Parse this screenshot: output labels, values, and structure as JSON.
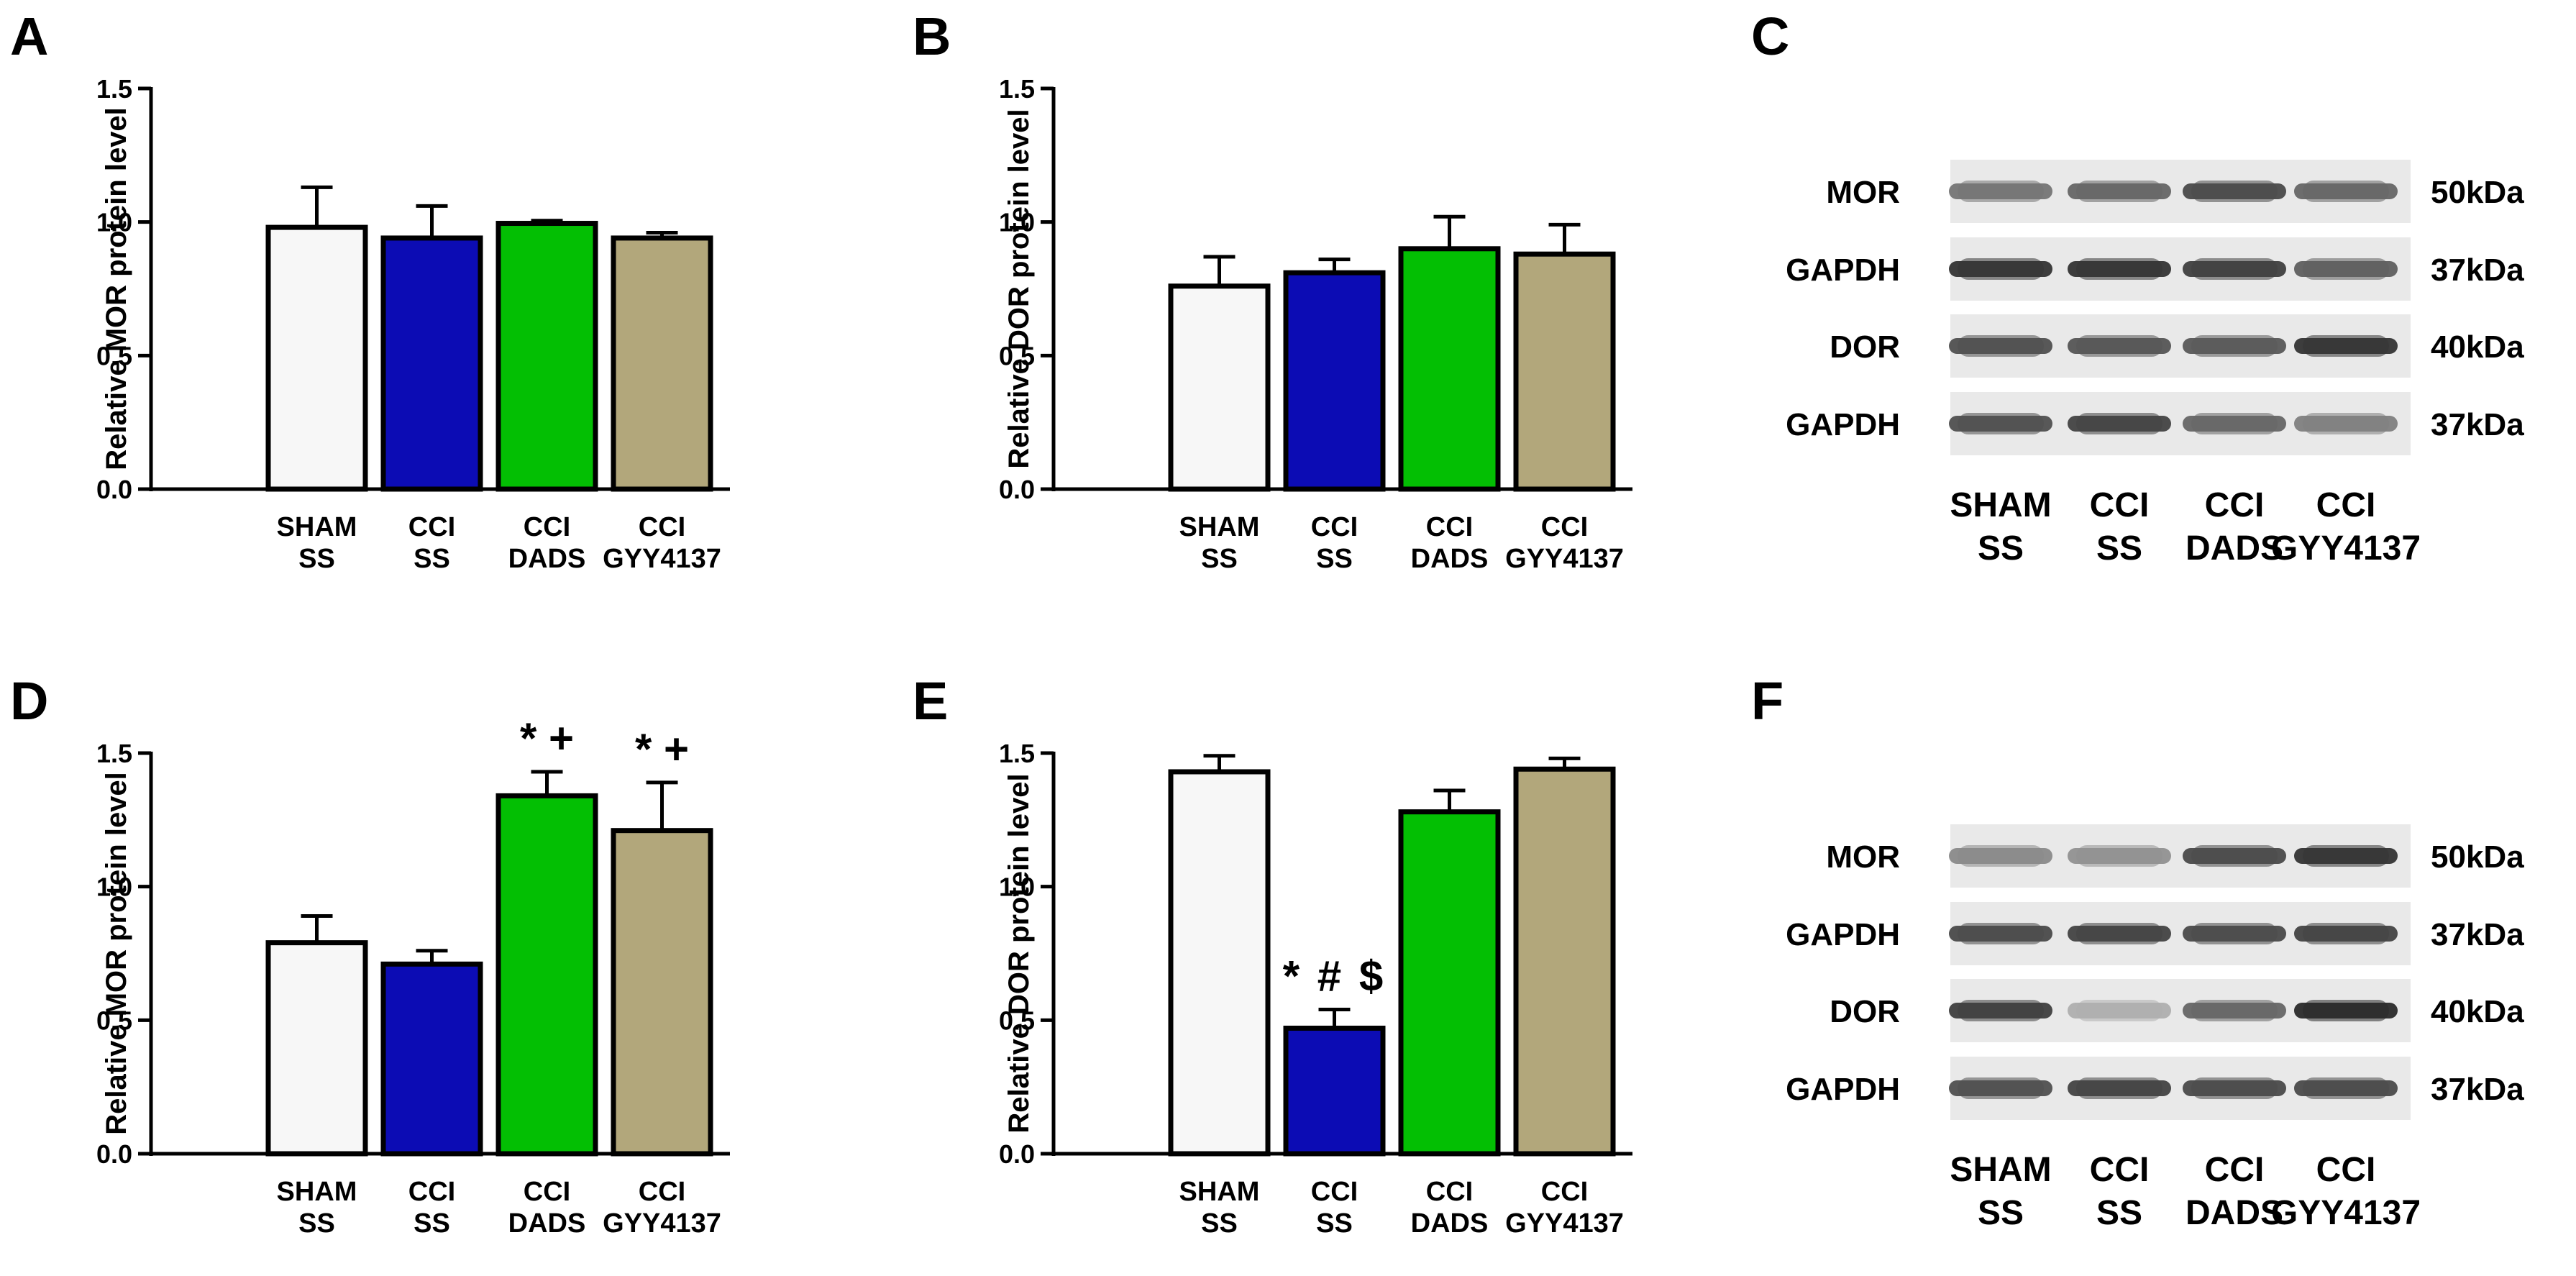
{
  "colors": {
    "sham_ss": "#f7f7f7",
    "cci_ss": "#0c0cb4",
    "cci_dads": "#03bf03",
    "cci_gyy4137": "#b2a77b",
    "axis": "#000000"
  },
  "blots": [
    {
      "panel": "C",
      "rows": [
        {
          "protein": "MOR",
          "kda": "50kDa",
          "intensity": [
            0.55,
            0.62,
            0.75,
            0.62
          ]
        },
        {
          "protein": "GAPDH",
          "kda": "37kDa",
          "intensity": [
            0.85,
            0.85,
            0.8,
            0.65
          ]
        },
        {
          "protein": "DOR",
          "kda": "40kDa",
          "intensity": [
            0.72,
            0.7,
            0.68,
            0.85
          ]
        },
        {
          "protein": "GAPDH",
          "kda": "37kDa",
          "intensity": [
            0.72,
            0.78,
            0.62,
            0.5
          ]
        }
      ],
      "lanes": [
        [
          "SHAM",
          "SS"
        ],
        [
          "CCI",
          "SS"
        ],
        [
          "CCI",
          "DADS"
        ],
        [
          "CCI",
          "GYY4137"
        ]
      ]
    },
    {
      "panel": "F",
      "rows": [
        {
          "protein": "MOR",
          "kda": "50kDa",
          "intensity": [
            0.45,
            0.42,
            0.75,
            0.85
          ]
        },
        {
          "protein": "GAPDH",
          "kda": "37kDa",
          "intensity": [
            0.75,
            0.78,
            0.75,
            0.78
          ]
        },
        {
          "protein": "DOR",
          "kda": "40kDa",
          "intensity": [
            0.8,
            0.28,
            0.62,
            0.9
          ]
        },
        {
          "protein": "GAPDH",
          "kda": "37kDa",
          "intensity": [
            0.72,
            0.78,
            0.75,
            0.75
          ]
        }
      ],
      "lanes": [
        [
          "SHAM",
          "SS"
        ],
        [
          "CCI",
          "SS"
        ],
        [
          "CCI",
          "DADS"
        ],
        [
          "CCI",
          "GYY4137"
        ]
      ]
    }
  ],
  "chart_data": [
    {
      "panel": "A",
      "type": "bar",
      "ylabel": "Relative MOR protein level",
      "ylim": [
        0,
        1.5
      ],
      "yticks": [
        "0.0",
        "0.5",
        "1.0",
        "1.5"
      ],
      "categories": [
        [
          "SHAM",
          "SS"
        ],
        [
          "CCI",
          "SS"
        ],
        [
          "CCI",
          "DADS"
        ],
        [
          "CCI",
          "GYY4137"
        ]
      ],
      "values": [
        0.98,
        0.94,
        0.995,
        0.94
      ],
      "errors": [
        0.15,
        0.12,
        0.01,
        0.02
      ],
      "annotations": [
        "",
        "",
        "",
        ""
      ]
    },
    {
      "panel": "B",
      "type": "bar",
      "ylabel": "Relative DOR protein level",
      "ylim": [
        0,
        1.5
      ],
      "yticks": [
        "0.0",
        "0.5",
        "1.0",
        "1.5"
      ],
      "categories": [
        [
          "SHAM",
          "SS"
        ],
        [
          "CCI",
          "SS"
        ],
        [
          "CCI",
          "DADS"
        ],
        [
          "CCI",
          "GYY4137"
        ]
      ],
      "values": [
        0.76,
        0.81,
        0.9,
        0.88
      ],
      "errors": [
        0.11,
        0.05,
        0.12,
        0.11
      ],
      "annotations": [
        "",
        "",
        "",
        ""
      ]
    },
    {
      "panel": "D",
      "type": "bar",
      "ylabel": "Relative MOR protein level",
      "ylim": [
        0,
        1.5
      ],
      "yticks": [
        "0.0",
        "0.5",
        "1.0",
        "1.5"
      ],
      "categories": [
        [
          "SHAM",
          "SS"
        ],
        [
          "CCI",
          "SS"
        ],
        [
          "CCI",
          "DADS"
        ],
        [
          "CCI",
          "GYY4137"
        ]
      ],
      "values": [
        0.79,
        0.71,
        1.34,
        1.21
      ],
      "errors": [
        0.1,
        0.05,
        0.09,
        0.18
      ],
      "annotations": [
        "",
        "",
        "*+",
        "*+"
      ]
    },
    {
      "panel": "E",
      "type": "bar",
      "ylabel": "Relative DOR protein level",
      "ylim": [
        0,
        1.5
      ],
      "yticks": [
        "0.0",
        "0.5",
        "1.0",
        "1.5"
      ],
      "categories": [
        [
          "SHAM",
          "SS"
        ],
        [
          "CCI",
          "SS"
        ],
        [
          "CCI",
          "DADS"
        ],
        [
          "CCI",
          "GYY4137"
        ]
      ],
      "values": [
        1.43,
        0.47,
        1.28,
        1.44
      ],
      "errors": [
        0.06,
        0.07,
        0.08,
        0.04
      ],
      "annotations": [
        "",
        "*#$",
        "",
        ""
      ]
    }
  ]
}
